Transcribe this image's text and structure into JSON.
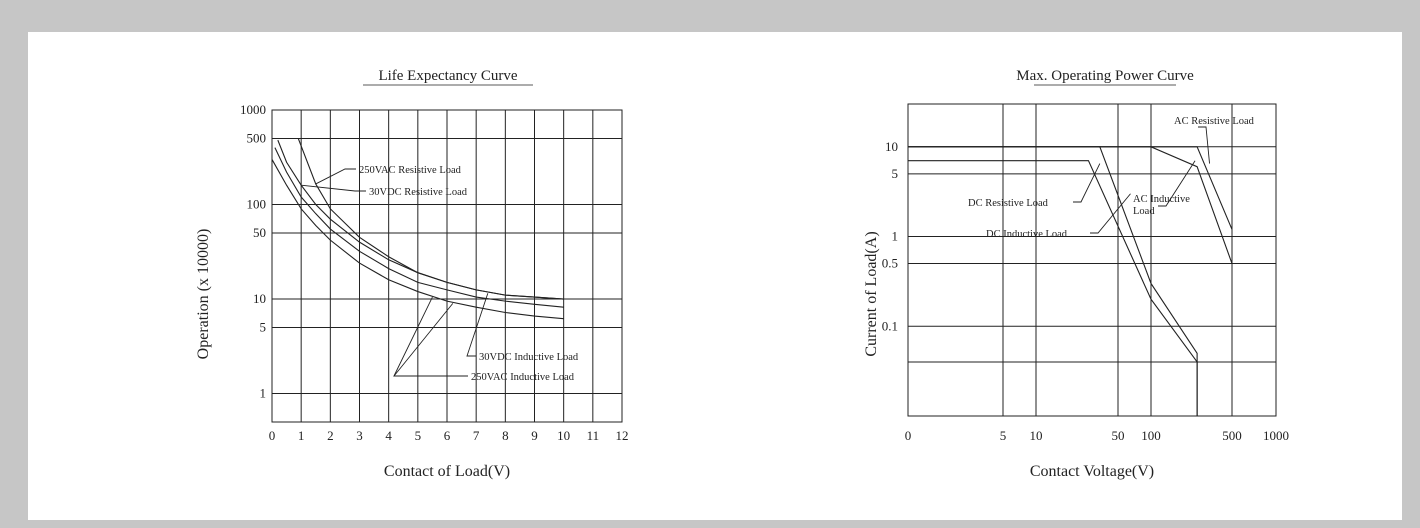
{
  "colors": {
    "background": "#c6c6c6",
    "panel": "#ffffff",
    "ink": "#222222"
  },
  "chart_data": [
    {
      "type": "line",
      "title": "Life Expectancy Curve",
      "xlabel": "Contact of Load(V)",
      "ylabel": "Operation (x 10000)",
      "x_ticks": [
        "0",
        "1",
        "2",
        "3",
        "4",
        "5",
        "6",
        "7",
        "8",
        "9",
        "10",
        "11",
        "12"
      ],
      "y_ticks": [
        "1000",
        "500",
        "100",
        "50",
        "10",
        "5",
        "1"
      ],
      "xlim": [
        0,
        12
      ],
      "ylim": [
        0.5,
        1000
      ],
      "y_scale": "log",
      "grid": true,
      "series": [
        {
          "name": "250VAC Resistive Load",
          "x": [
            0.9,
            1.5,
            2,
            3,
            4,
            5,
            6,
            7,
            8,
            9,
            10
          ],
          "y": [
            500,
            165,
            90,
            45,
            28,
            19,
            15,
            12.5,
            11,
            10.5,
            10
          ]
        },
        {
          "name": "30VDC Resistive Load",
          "x": [
            0.2,
            0.5,
            1,
            1.5,
            2,
            3,
            4,
            5,
            6,
            7,
            8,
            9,
            10
          ],
          "y": [
            480,
            280,
            160,
            100,
            70,
            40,
            26,
            19,
            15,
            12.5,
            11,
            10.5,
            10
          ]
        },
        {
          "name": "30VDC Inductive Load",
          "x": [
            0.1,
            0.5,
            1,
            1.5,
            2,
            3,
            4,
            5,
            6,
            7,
            8,
            9,
            10
          ],
          "y": [
            400,
            220,
            120,
            80,
            55,
            32,
            21,
            15,
            12.5,
            10.5,
            9.5,
            8.8,
            8.2
          ]
        },
        {
          "name": "250VAC Inductive Load",
          "x": [
            0,
            0.5,
            1,
            1.5,
            2,
            3,
            4,
            5,
            6,
            7,
            8,
            9,
            10
          ],
          "y": [
            300,
            160,
            90,
            60,
            42,
            24,
            16,
            12,
            9.5,
            8.2,
            7.2,
            6.6,
            6.2
          ]
        }
      ]
    },
    {
      "type": "line",
      "title": "Max. Operating Power Curve",
      "xlabel": "Contact Voltage(V)",
      "ylabel": "Current of Load(A)",
      "x_ticks": [
        "0",
        "5",
        "10",
        "50",
        "100",
        "500",
        "1000"
      ],
      "y_ticks": [
        "10",
        "5",
        "1",
        "0.5",
        "0.1"
      ],
      "x_scale": "log",
      "y_scale": "log",
      "xlim": [
        1,
        1000
      ],
      "ylim": [
        0.01,
        30
      ],
      "grid": true,
      "series": [
        {
          "name": "AC Resistive Load",
          "x": [
            1,
            250,
            500
          ],
          "y": [
            10,
            10,
            1.2
          ]
        },
        {
          "name": "AC Inductive Load",
          "x": [
            1,
            100,
            250,
            500
          ],
          "y": [
            10,
            10,
            6,
            0.5
          ]
        },
        {
          "name": "DC Resistive Load",
          "x": [
            1,
            35,
            100,
            250,
            250
          ],
          "y": [
            10,
            10,
            0.3,
            0.05,
            0.005
          ]
        },
        {
          "name": "DC Inductive Load",
          "x": [
            1,
            28,
            100,
            250,
            250
          ],
          "y": [
            7,
            7,
            0.2,
            0.04,
            0.005
          ]
        }
      ]
    }
  ]
}
